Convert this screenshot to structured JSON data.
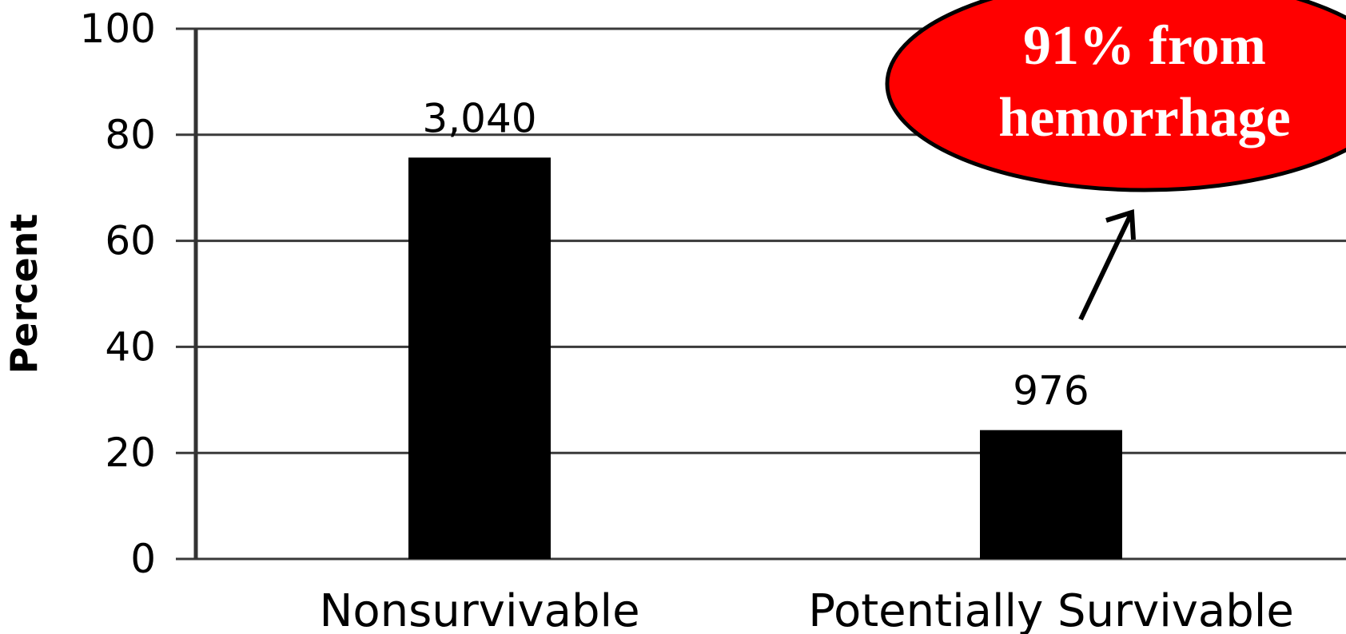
{
  "chart_data": {
    "type": "bar",
    "categories": [
      "Nonsurvivable",
      "Potentially Survivable"
    ],
    "values": [
      75.7,
      24.3
    ],
    "data_labels": [
      "3,040",
      "976"
    ],
    "title": "",
    "xlabel": "",
    "ylabel": "Percent",
    "ylim": [
      0,
      100
    ],
    "yticks": [
      "0",
      "20",
      "40",
      "60",
      "80",
      "100"
    ],
    "grid": true,
    "bar_color": "#000000",
    "annotation": {
      "lines": [
        "91% from",
        "hemorrhage"
      ],
      "fill_color": "#ff0000",
      "text_color": "#ffffff",
      "points_to": "Potentially Survivable"
    }
  }
}
